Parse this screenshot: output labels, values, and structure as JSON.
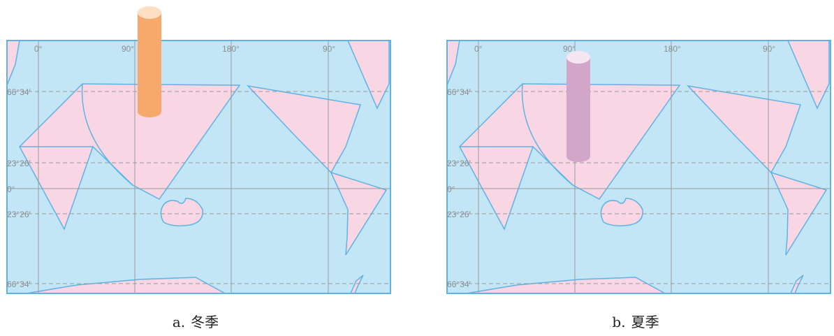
{
  "maps": [
    {
      "caption_label": "a.",
      "caption_text": "冬季",
      "longitudes": [
        "0°",
        "90°",
        "180°",
        "90°"
      ],
      "latitudes": [
        "66°34′",
        "23°26′",
        "0°",
        "23°26′",
        "66°34′"
      ],
      "cylinder_color": "#f7a86b",
      "cylinder_highlight": "#fde0c4"
    },
    {
      "caption_label": "b.",
      "caption_text": "夏季",
      "longitudes": [
        "0°",
        "90°",
        "180°",
        "90°"
      ],
      "latitudes": [
        "66°34′",
        "23°26′",
        "0°",
        "23°26′",
        "66°34′"
      ],
      "cylinder_color": "#d2a6c8",
      "cylinder_highlight": "#f6e6f2"
    }
  ],
  "colors": {
    "ocean": "#c3e6f7",
    "land": "#f8d6e3",
    "border": "#5fb3e3"
  }
}
